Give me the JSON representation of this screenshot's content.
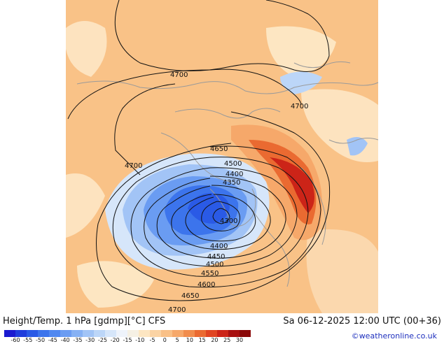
{
  "map": {
    "title": "Height/Temp. 1 hPa [gdmp][°C] CFS",
    "valid_time": "Sa 06-12-2025 12:00 UTC (00+36)",
    "credit": "©weatheronline.co.uk",
    "contour_labels": [
      "4700",
      "4700",
      "4700",
      "4650",
      "4500",
      "4400",
      "4350",
      "4300",
      "4400",
      "4450",
      "4500",
      "4550",
      "4600",
      "4650",
      "4700"
    ],
    "legend": {
      "ticks": [
        "-60",
        "-55",
        "-50",
        "-45",
        "-40",
        "-35",
        "-30",
        "-25",
        "-20",
        "-15",
        "-10",
        "-5",
        "0",
        "5",
        "10",
        "15",
        "20",
        "25",
        "30"
      ],
      "colors": [
        "#1a1ad0",
        "#1f3ddc",
        "#2a5ae6",
        "#3c74ec",
        "#5088f0",
        "#6a9cf2",
        "#86b1f4",
        "#a2c4f6",
        "#bcd6f8",
        "#d6e6fa",
        "#eef3fb",
        "#f5f0e4",
        "#fde6c2",
        "#fbd3a4",
        "#f9c087",
        "#f6a86a",
        "#f18c4c",
        "#ea6a31",
        "#e04522",
        "#cc2418",
        "#a81010",
        "#8a0808"
      ]
    }
  }
}
